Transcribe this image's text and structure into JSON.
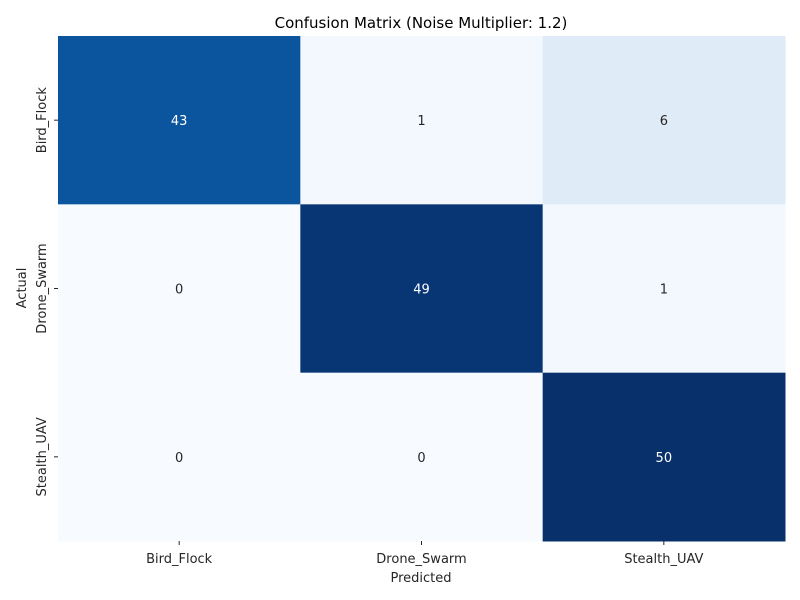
{
  "chart_data": {
    "type": "heatmap",
    "title": "Confusion Matrix (Noise Multiplier: 1.2)",
    "xlabel": "Predicted",
    "ylabel": "Actual",
    "x_categories": [
      "Bird_Flock",
      "Drone_Swarm",
      "Stealth_UAV"
    ],
    "y_categories": [
      "Bird_Flock",
      "Drone_Swarm",
      "Stealth_UAV"
    ],
    "values": [
      [
        43,
        1,
        6
      ],
      [
        0,
        49,
        1
      ],
      [
        0,
        0,
        50
      ]
    ],
    "value_range": [
      0,
      50
    ],
    "colormap": "Blues",
    "colorbar": false,
    "colors": {
      "low": "#f7fbff",
      "high": "#08306b",
      "text_dark": "#262626",
      "text_light": "#ffffff"
    }
  }
}
